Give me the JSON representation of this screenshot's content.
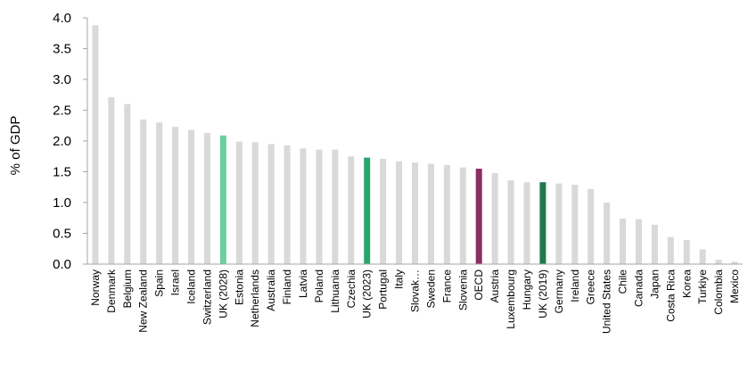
{
  "chart_data": {
    "type": "bar",
    "title": "",
    "xlabel": "",
    "ylabel": "% of GDP",
    "ylim": [
      0,
      4.0
    ],
    "yticks": [
      "0.0",
      "0.5",
      "1.0",
      "1.5",
      "2.0",
      "2.5",
      "3.0",
      "3.5",
      "4.0"
    ],
    "grid": false,
    "categories": [
      "Norway",
      "Denmark",
      "Belgium",
      "New Zealand",
      "Spain",
      "Israel",
      "Iceland",
      "Switzerland",
      "UK (2028)",
      "Estonia",
      "Netherlands",
      "Australia",
      "Finland",
      "Latvia",
      "Poland",
      "Lithuania",
      "Czechia",
      "UK (2023)",
      "Portugal",
      "Italy",
      "Slovak…",
      "Sweden",
      "France",
      "Slovenia",
      "OECD",
      "Austria",
      "Luxembourg",
      "Hungary",
      "UK (2019)",
      "Germany",
      "Ireland",
      "Greece",
      "United States",
      "Chile",
      "Canada",
      "Japan",
      "Costa Rica",
      "Korea",
      "Turkiye",
      "Colombia",
      "Mexico"
    ],
    "values": [
      3.88,
      2.71,
      2.6,
      2.35,
      2.3,
      2.23,
      2.18,
      2.13,
      2.09,
      1.99,
      1.98,
      1.95,
      1.93,
      1.88,
      1.86,
      1.86,
      1.75,
      1.73,
      1.71,
      1.67,
      1.65,
      1.63,
      1.61,
      1.57,
      1.55,
      1.48,
      1.36,
      1.33,
      1.33,
      1.31,
      1.29,
      1.22,
      1.0,
      0.74,
      0.73,
      0.64,
      0.44,
      0.39,
      0.24,
      0.07,
      0.04
    ],
    "colors": {
      "default": "#d9d9d9",
      "UK (2028)": "#6bcfa0",
      "UK (2023)": "#2aa56c",
      "OECD": "#8c2f62",
      "UK (2019)": "#1e7a4e",
      "axis": "#a6a6a6"
    }
  }
}
